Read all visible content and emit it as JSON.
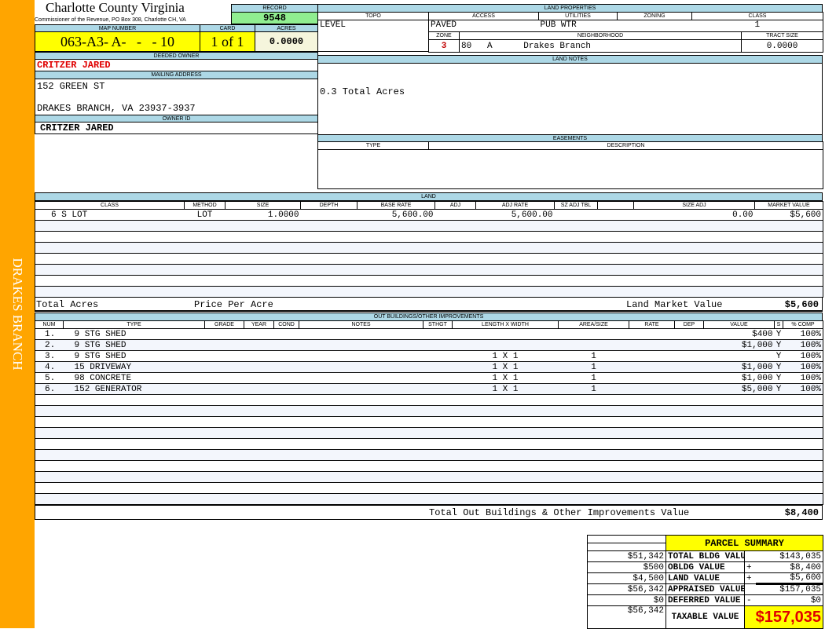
{
  "sidebar": {
    "label": "DRAKES BRANCH",
    "color": "#FFA500"
  },
  "header": {
    "title": "Charlotte County Virginia",
    "subtitle": "Commissioner of the Revenue, PO Box 308, Charlotte CH, VA"
  },
  "record": {
    "label": "RECORD",
    "value": "9548"
  },
  "map": {
    "label": "MAP NUMBER",
    "value": "063-A3- A-   -   - 10"
  },
  "card": {
    "label": "CARD",
    "value": "1 of 1"
  },
  "acres": {
    "label": "ACRES",
    "value": "0.0000"
  },
  "deeded_owner": {
    "label": "DEEDED OWNER",
    "value": "CRITZER JARED"
  },
  "mailing": {
    "label": "MAILING ADDRESS",
    "line1": "152 GREEN ST",
    "line2": "DRAKES BRANCH, VA 23937-3937"
  },
  "owner_id": {
    "label": "OWNER ID",
    "value": "CRITZER JARED"
  },
  "land_properties": {
    "label": "LAND PROPERTIES",
    "topo_label": "TOPO",
    "access_label": "ACCESS",
    "utilities_label": "UTILITIES",
    "zoning_label": "ZONING",
    "class_label": "CLASS",
    "topo": "LEVEL",
    "access": "PAVED",
    "utilities": "PUB WTR",
    "zoning": "",
    "class": "1",
    "zone_label": "ZONE",
    "neighborhood_label": "NEIGHBORHOOD",
    "tract_label": "TRACT SIZE",
    "zone": "3",
    "neighborhood": "80   A      Drakes Branch",
    "tract": "0.0000"
  },
  "land_notes": {
    "label": "LAND NOTES",
    "text": "0.3 Total Acres"
  },
  "easements": {
    "label": "EASEMENTS",
    "type_label": "TYPE",
    "desc_label": "DESCRIPTION"
  },
  "land": {
    "label": "LAND",
    "columns": [
      "CLASS",
      "METHOD",
      "SIZE",
      "DEPTH",
      "BASE RATE",
      "ADJ",
      "ADJ RATE",
      "SZ ADJ TBL",
      "",
      "Size Adj",
      "MARKET VALUE"
    ],
    "rows": [
      [
        "6 S LOT",
        "LOT",
        "1.0000",
        "",
        "5,600.00",
        "",
        "5,600.00",
        "",
        "",
        "0.00",
        "$5,600"
      ]
    ],
    "total_acres_label": "Total Acres",
    "price_per_acre_label": "Price Per Acre",
    "market_value_label": "Land Market Value",
    "market_value": "$5,600"
  },
  "outbuildings": {
    "label": "OUT BUILDINGS/OTHER IMPROVEMENTS",
    "columns": [
      "NUM",
      "TYPE",
      "GRADE",
      "YEAR",
      "COND",
      "NOTES",
      "STHGT",
      "LENGTH X WIDTH",
      "AREA/SIZE",
      "RATE",
      "DEP",
      "VALUE",
      "S",
      "% COMP"
    ],
    "rows": [
      [
        "1.",
        "9  STG SHED",
        "",
        "",
        "",
        "",
        "",
        "",
        "",
        "",
        "",
        "$400",
        "Y",
        "100%"
      ],
      [
        "2.",
        "9  STG SHED",
        "",
        "",
        "",
        "",
        "",
        "",
        "",
        "",
        "",
        "$1,000",
        "Y",
        "100%"
      ],
      [
        "3.",
        "9  STG SHED",
        "",
        "",
        "",
        "",
        "",
        "1 X 1",
        "1",
        "",
        "",
        "",
        "Y",
        "100%"
      ],
      [
        "4.",
        "15  DRIVEWAY",
        "",
        "",
        "",
        "",
        "",
        "1 X 1",
        "1",
        "",
        "",
        "$1,000",
        "Y",
        "100%"
      ],
      [
        "5.",
        "98  CONCRETE",
        "",
        "",
        "",
        "",
        "",
        "1 X 1",
        "1",
        "",
        "",
        "$1,000",
        "Y",
        "100%"
      ],
      [
        "6.",
        "152  GENERATOR",
        "",
        "",
        "",
        "",
        "",
        "1 X 1",
        "1",
        "",
        "",
        "$5,000",
        "Y",
        "100%"
      ]
    ],
    "total_label": "Total Out Buildings & Other Improvements Value",
    "total": "$8,400"
  },
  "summary": {
    "title": "PARCEL SUMMARY",
    "rows": [
      {
        "left": "$51,342",
        "label": "TOTAL BLDG VALUE",
        "op": "",
        "value": "$143,035"
      },
      {
        "left": "$500",
        "label": "OBLDG VALUE",
        "op": "+",
        "value": "$8,400"
      },
      {
        "left": "$4,500",
        "label": "LAND VALUE",
        "op": "+",
        "value": "$5,600"
      },
      {
        "left": "$56,342",
        "label": "APPRAISED VALUE",
        "op": "",
        "value": "$157,035"
      },
      {
        "left": "$0",
        "label": "DEFERRED VALUE",
        "op": "-",
        "value": "$0"
      }
    ],
    "taxable_left": "$56,342",
    "taxable_label": "TAXABLE VALUE",
    "taxable": "$157,035"
  }
}
